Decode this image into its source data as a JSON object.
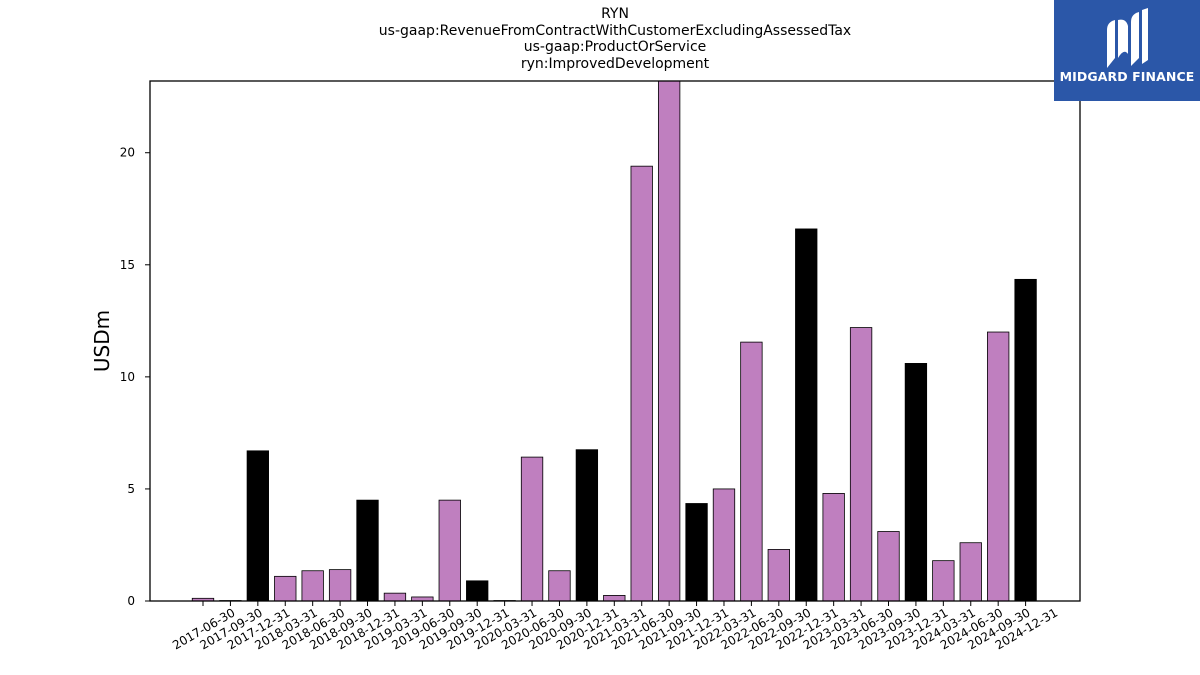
{
  "header": {
    "title_lines": [
      "RYN",
      "us-gaap:RevenueFromContractWithCustomerExcludingAssessedTax",
      "us-gaap:ProductOrService",
      "ryn:ImprovedDevelopment"
    ]
  },
  "logo": {
    "text": "MIDGARD FINANCE",
    "color": "#2b57a8"
  },
  "chart_data": {
    "type": "bar",
    "ylabel": "USDm",
    "xlabel": "",
    "ylim": [
      0,
      23.2
    ],
    "yticks": [
      0,
      5,
      10,
      15,
      20
    ],
    "grid": false,
    "legend": "none",
    "colors": {
      "quarter": "#bf7fbf",
      "year_end": "#000000",
      "edge": "#000000"
    },
    "categories": [
      "2017-06-30",
      "2017-09-30",
      "2017-12-31",
      "2018-03-31",
      "2018-06-30",
      "2018-09-30",
      "2018-12-31",
      "2019-03-31",
      "2019-06-30",
      "2019-09-30",
      "2019-12-31",
      "2020-03-31",
      "2020-06-30",
      "2020-09-30",
      "2020-12-31",
      "2021-03-31",
      "2021-06-30",
      "2021-09-30",
      "2021-12-31",
      "2022-03-31",
      "2022-06-30",
      "2022-09-30",
      "2022-12-31",
      "2023-03-31",
      "2023-06-30",
      "2023-09-30",
      "2023-12-31",
      "2024-03-31",
      "2024-06-30",
      "2024-09-30",
      "2024-12-31"
    ],
    "values": [
      0.12,
      0.02,
      6.7,
      1.1,
      1.35,
      1.4,
      4.5,
      0.35,
      0.18,
      4.5,
      0.9,
      0.02,
      6.42,
      1.35,
      6.75,
      0.25,
      19.4,
      23.3,
      4.35,
      5.0,
      11.55,
      2.3,
      16.6,
      4.8,
      12.2,
      3.1,
      10.6,
      1.8,
      2.6,
      12.0,
      14.35
    ],
    "year_end": [
      false,
      false,
      true,
      false,
      false,
      false,
      true,
      false,
      false,
      false,
      true,
      false,
      false,
      false,
      true,
      false,
      false,
      false,
      true,
      false,
      false,
      false,
      true,
      false,
      false,
      false,
      true,
      false,
      false,
      false,
      true
    ]
  }
}
